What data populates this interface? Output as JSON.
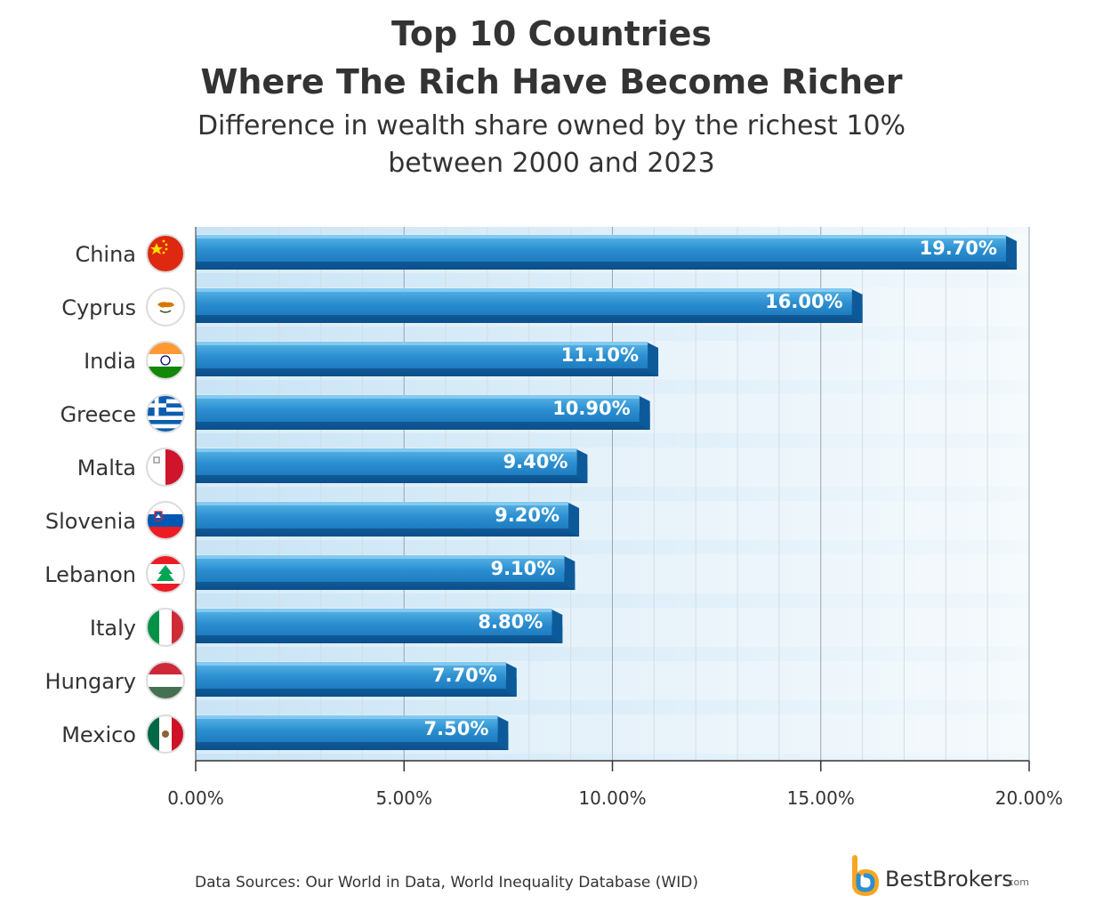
{
  "header": {
    "title_line1": "Top 10 Countries",
    "title_line2": "Where The Rich Have Become Richer",
    "subtitle_line1": "Difference in wealth share owned by the richest 10%",
    "subtitle_line2": "between 2000 and 2023"
  },
  "chart_data": {
    "type": "bar",
    "orientation": "horizontal",
    "title": "Top 10 Countries Where The Rich Have Become Richer",
    "subtitle": "Difference in wealth share owned by the richest 10% between 2000 and 2023",
    "categories": [
      "China",
      "Cyprus",
      "India",
      "Greece",
      "Malta",
      "Slovenia",
      "Lebanon",
      "Italy",
      "Hungary",
      "Mexico"
    ],
    "values": [
      19.7,
      16.0,
      11.1,
      10.9,
      9.4,
      9.2,
      9.1,
      8.8,
      7.7,
      7.5
    ],
    "value_labels": [
      "19.70%",
      "16.00%",
      "11.10%",
      "10.90%",
      "9.40%",
      "9.20%",
      "9.10%",
      "8.80%",
      "7.70%",
      "7.50%"
    ],
    "xlim": [
      0,
      20
    ],
    "xticks": [
      0,
      5,
      10,
      15,
      20
    ],
    "xtick_labels": [
      "0.00%",
      "5.00%",
      "10.00%",
      "15.00%",
      "20.00%"
    ],
    "xlabel": "",
    "ylabel": "",
    "grid": true,
    "flags": [
      "china-flag-icon",
      "cyprus-flag-icon",
      "india-flag-icon",
      "greece-flag-icon",
      "malta-flag-icon",
      "slovenia-flag-icon",
      "lebanon-flag-icon",
      "italy-flag-icon",
      "hungary-flag-icon",
      "mexico-flag-icon"
    ],
    "bar_color": "#2b8fd0",
    "bar_shadow_color": "#0d5a9a"
  },
  "footer": {
    "source": "Data Sources: Our World in Data, World Inequality Database (WID)",
    "brand_name": "BestBrokers",
    "brand_domain": ".com"
  }
}
